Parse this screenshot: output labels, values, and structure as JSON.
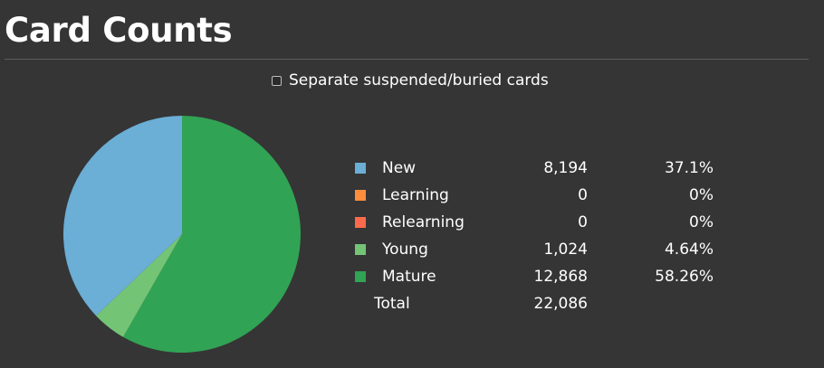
{
  "header": {
    "title": "Card Counts"
  },
  "toggle": {
    "label": "Separate suspended/buried cards",
    "checked": false
  },
  "chart_data": {
    "type": "pie",
    "categories": [
      "New",
      "Learning",
      "Relearning",
      "Young",
      "Mature"
    ],
    "values": [
      8194,
      0,
      0,
      1024,
      12868
    ],
    "display_counts": [
      "8,194",
      "0",
      "0",
      "1,024",
      "12,868"
    ],
    "display_percents": [
      "37.1%",
      "0%",
      "0%",
      "4.64%",
      "58.26%"
    ],
    "colors": [
      "#6baed6",
      "#fd8d3c",
      "#fb6a4a",
      "#74c476",
      "#31a354"
    ],
    "total": {
      "label": "Total",
      "value": "22,086"
    }
  }
}
